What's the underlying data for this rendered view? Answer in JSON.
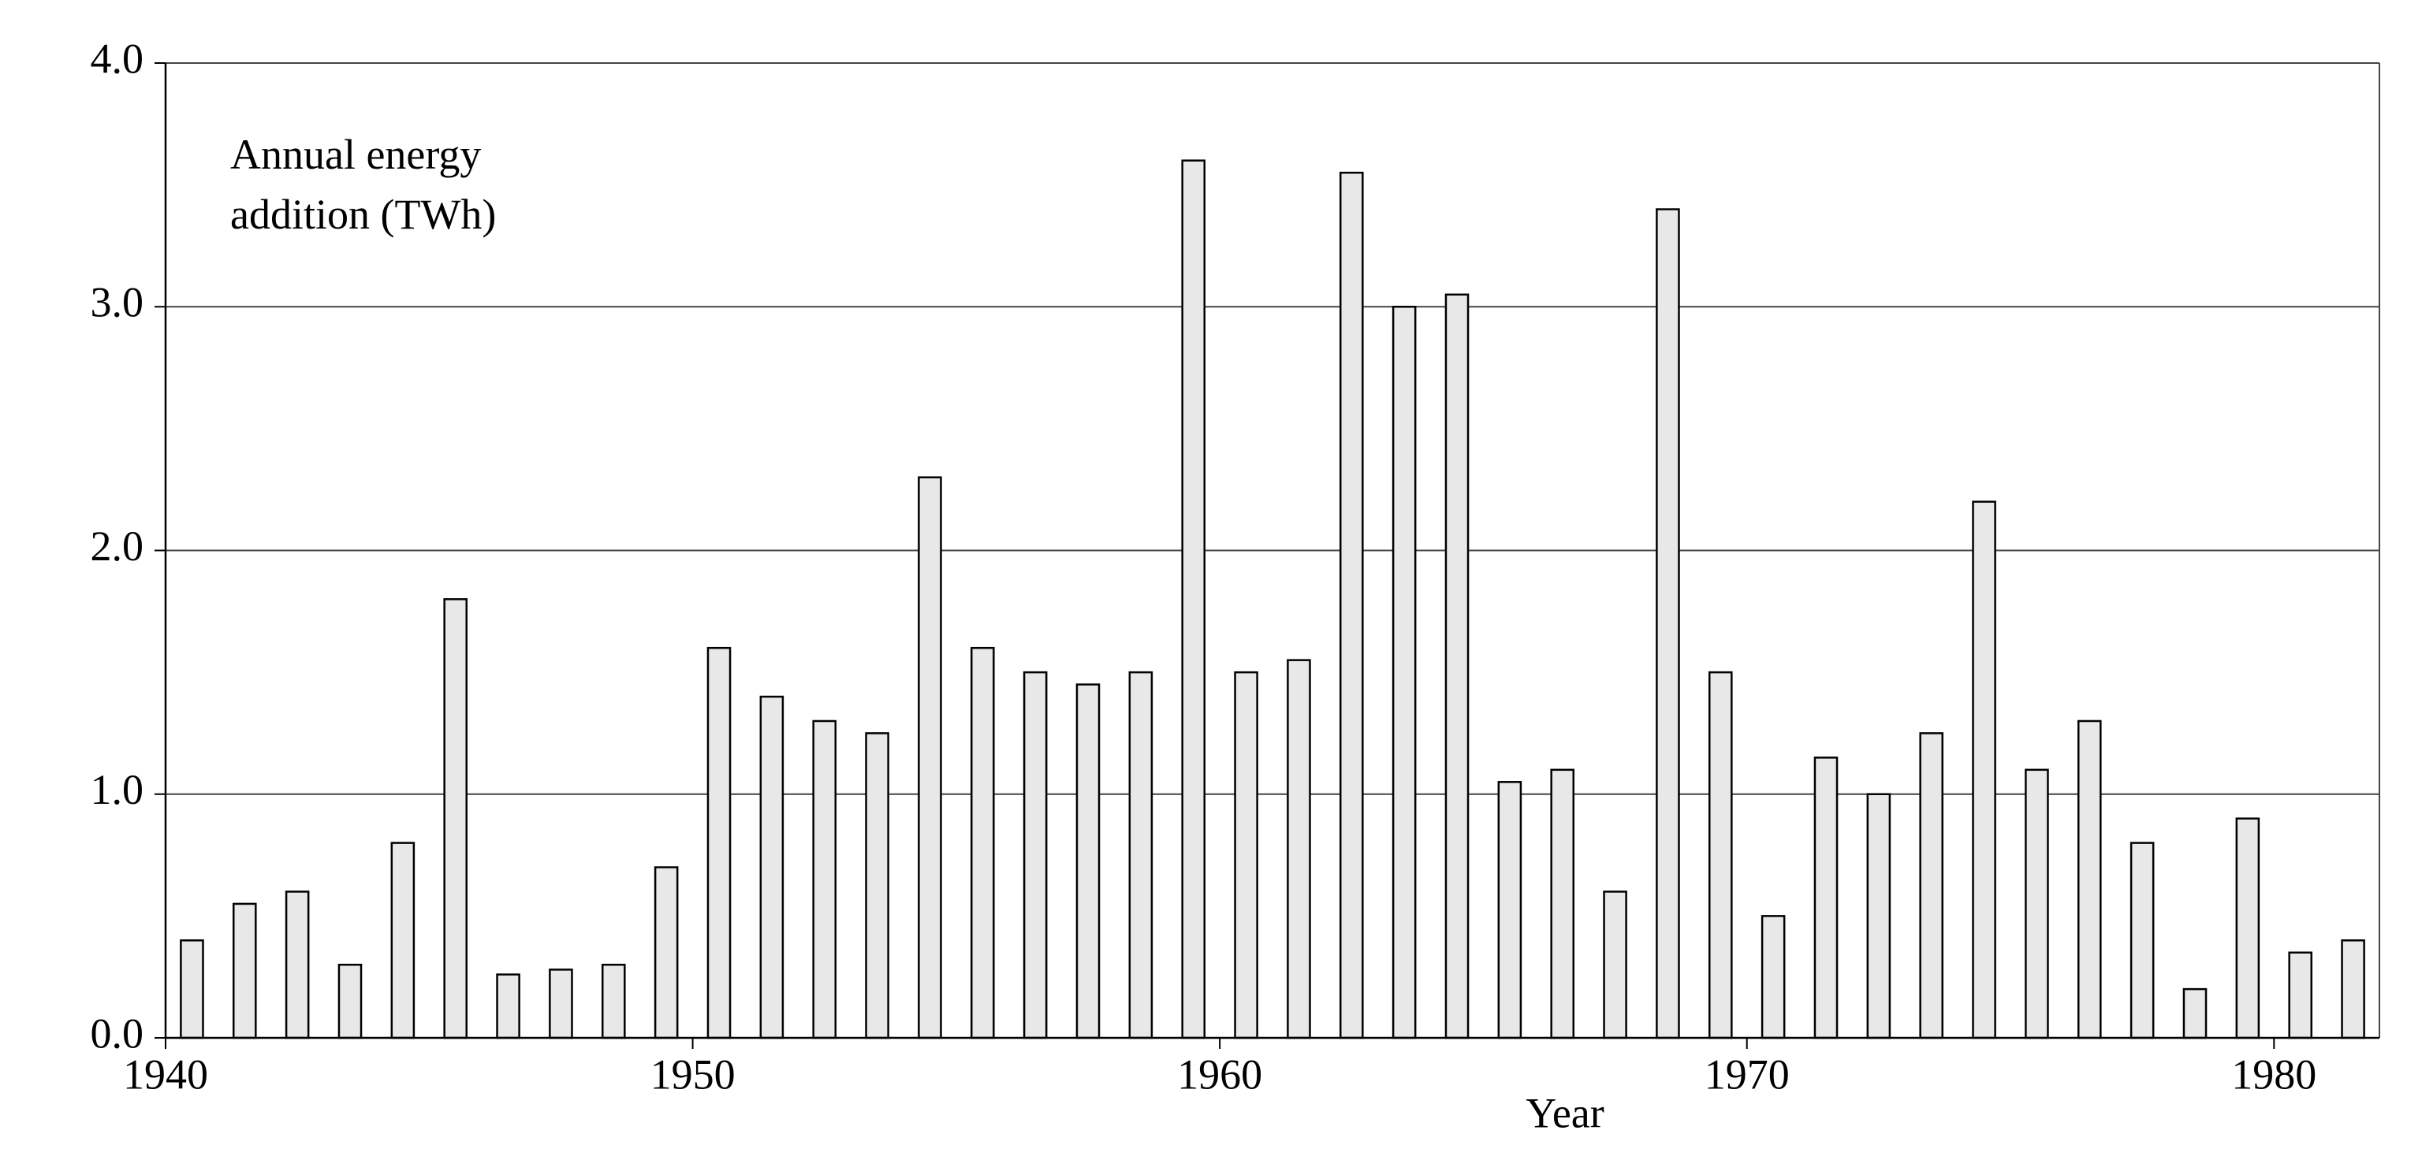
{
  "chart_data": {
    "type": "bar",
    "annotation": "Annual energy addition (TWh)",
    "x_label": "Year",
    "x": [
      1940,
      1941,
      1942,
      1943,
      1944,
      1945,
      1946,
      1947,
      1948,
      1949,
      1950,
      1951,
      1952,
      1953,
      1954,
      1955,
      1956,
      1957,
      1958,
      1959,
      1960,
      1961,
      1962,
      1963,
      1964,
      1965,
      1966,
      1967,
      1968,
      1969,
      1970,
      1971,
      1972,
      1973,
      1974,
      1975,
      1976,
      1977,
      1978,
      1979,
      1980,
      1981
    ],
    "values": [
      0.4,
      0.55,
      0.6,
      0.3,
      0.8,
      1.8,
      0.26,
      0.28,
      0.3,
      0.7,
      1.6,
      1.4,
      1.3,
      1.25,
      2.3,
      1.6,
      1.5,
      1.45,
      1.5,
      3.6,
      1.5,
      1.55,
      3.55,
      3.0,
      3.05,
      1.05,
      1.1,
      0.6,
      3.4,
      1.5,
      0.5,
      1.15,
      1.0,
      1.25,
      2.2,
      1.1,
      1.3,
      0.8,
      0.2,
      0.9,
      0.35,
      0.4
    ],
    "color": "#e8e8e8",
    "xlim": [
      1940,
      1982
    ],
    "xticks": [
      1940,
      1950,
      1960,
      1970,
      1980
    ],
    "ylim": [
      0,
      4
    ],
    "yticks": [
      {
        "value": 0,
        "label": "0.0"
      },
      {
        "value": 1,
        "label": "1.0"
      },
      {
        "value": 2,
        "label": "2.0"
      },
      {
        "value": 3,
        "label": "3.0"
      },
      {
        "value": 4,
        "label": "4.0"
      }
    ],
    "grid": true
  }
}
